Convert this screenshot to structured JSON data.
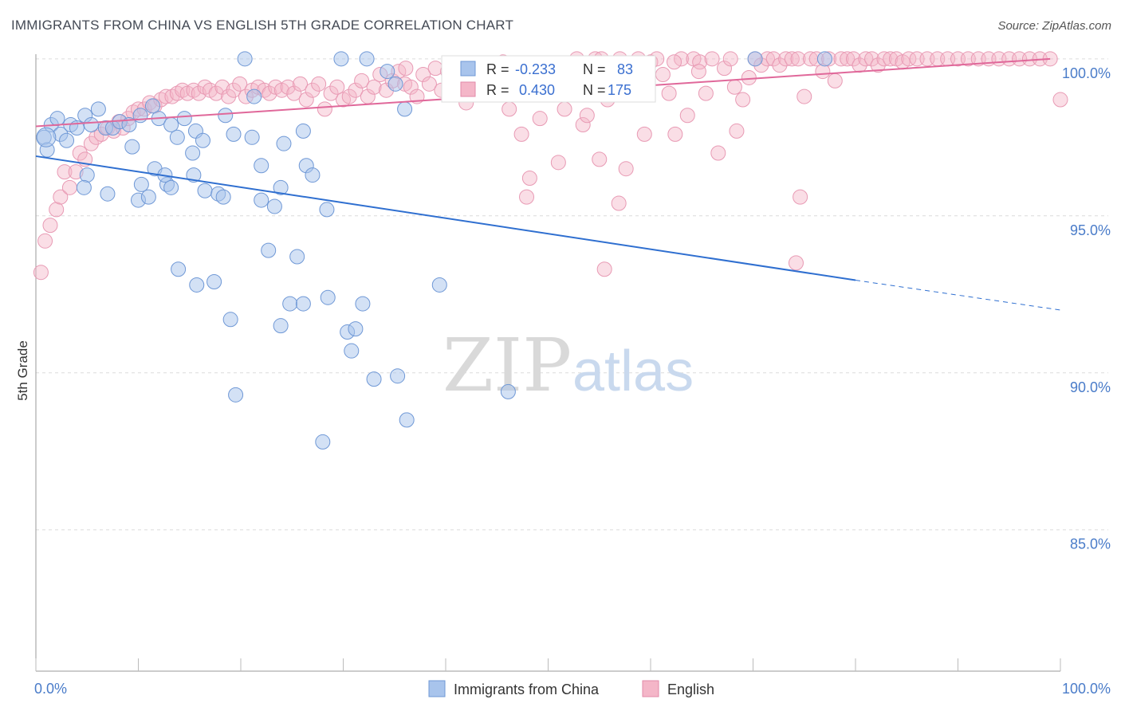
{
  "header": {
    "title": "IMMIGRANTS FROM CHINA VS ENGLISH 5TH GRADE CORRELATION CHART",
    "source": "Source: ZipAtlas.com"
  },
  "watermark": {
    "zip": "ZIP",
    "atlas": "atlas"
  },
  "legend_box": {
    "china": {
      "r_label": "R =",
      "r_value": "-0.233",
      "n_label": "N =",
      "n_value": "83"
    },
    "english": {
      "r_label": "R =",
      "r_value": "0.430",
      "n_label": "N =",
      "n_value": "175"
    }
  },
  "bottom_legend": {
    "china": "Immigrants from China",
    "english": "English"
  },
  "colors": {
    "china": "#a8c4ec",
    "china_line": "#2f6fd0",
    "english": "#f4b6c8",
    "english_line": "#e0689a",
    "axis_text": "#4a7cc9"
  },
  "chart_data": {
    "type": "scatter",
    "title": "IMMIGRANTS FROM CHINA VS ENGLISH 5TH GRADE CORRELATION CHART",
    "xlabel": "",
    "ylabel": "5th Grade",
    "xlim": [
      0,
      100
    ],
    "ylim": [
      80.5,
      100.3
    ],
    "x_ticks": [
      "0.0%",
      "100.0%"
    ],
    "y_ticks": [
      {
        "value": 100,
        "label": "100.0%"
      },
      {
        "value": 95,
        "label": "95.0%"
      },
      {
        "value": 90,
        "label": "90.0%"
      },
      {
        "value": 85,
        "label": "85.0%"
      }
    ],
    "grid": true,
    "legend": "bottom-center",
    "series": [
      {
        "name": "Immigrants from China",
        "r": -0.233,
        "n": 83,
        "trend": {
          "x0": 0,
          "y0": 96.9,
          "x1": 80,
          "y1": 92.95,
          "dash_x1": 100,
          "dash_y1": 92.0
        },
        "points": [
          [
            0.8,
            97.5
          ],
          [
            1.1,
            97.1
          ],
          [
            1.5,
            97.9
          ],
          [
            2.1,
            98.1
          ],
          [
            2.4,
            97.6
          ],
          [
            3.0,
            97.4
          ],
          [
            3.4,
            97.9
          ],
          [
            4.0,
            97.8
          ],
          [
            4.8,
            98.2
          ],
          [
            5.4,
            97.9
          ],
          [
            6.1,
            98.4
          ],
          [
            6.8,
            97.8
          ],
          [
            7.5,
            97.8
          ],
          [
            8.2,
            98.0
          ],
          [
            9.1,
            97.9
          ],
          [
            10.2,
            98.2
          ],
          [
            11.4,
            98.5
          ],
          [
            12.0,
            98.1
          ],
          [
            13.2,
            97.9
          ],
          [
            14.5,
            98.1
          ],
          [
            15.6,
            97.7
          ],
          [
            16.3,
            97.4
          ],
          [
            5.0,
            96.3
          ],
          [
            4.7,
            95.9
          ],
          [
            7.0,
            95.7
          ],
          [
            9.4,
            97.2
          ],
          [
            10.0,
            95.5
          ],
          [
            10.3,
            96.0
          ],
          [
            11.0,
            95.6
          ],
          [
            11.6,
            96.5
          ],
          [
            12.8,
            96.0
          ],
          [
            12.6,
            96.3
          ],
          [
            13.2,
            95.9
          ],
          [
            13.8,
            97.5
          ],
          [
            15.3,
            97.0
          ],
          [
            15.4,
            96.3
          ],
          [
            16.5,
            95.8
          ],
          [
            17.8,
            95.7
          ],
          [
            18.3,
            95.6
          ],
          [
            18.5,
            98.2
          ],
          [
            19.3,
            97.6
          ],
          [
            21.3,
            98.8
          ],
          [
            22.0,
            95.5
          ],
          [
            22.0,
            96.6
          ],
          [
            22.7,
            93.9
          ],
          [
            23.3,
            95.3
          ],
          [
            23.9,
            95.9
          ],
          [
            24.2,
            97.3
          ],
          [
            26.1,
            97.7
          ],
          [
            26.4,
            96.6
          ],
          [
            27.0,
            96.3
          ],
          [
            28.4,
            95.2
          ],
          [
            21.1,
            97.5
          ],
          [
            13.9,
            93.3
          ],
          [
            15.7,
            92.8
          ],
          [
            17.4,
            92.9
          ],
          [
            19.0,
            91.7
          ],
          [
            19.5,
            89.3
          ],
          [
            24.8,
            92.2
          ],
          [
            25.5,
            93.7
          ],
          [
            26.1,
            92.2
          ],
          [
            23.9,
            91.5
          ],
          [
            28.5,
            92.4
          ],
          [
            30.4,
            91.3
          ],
          [
            30.8,
            90.7
          ],
          [
            31.2,
            91.4
          ],
          [
            31.9,
            92.2
          ],
          [
            33.0,
            89.8
          ],
          [
            35.3,
            89.9
          ],
          [
            36.2,
            88.5
          ],
          [
            28.0,
            87.8
          ],
          [
            39.4,
            92.8
          ],
          [
            46.1,
            89.4
          ],
          [
            20.4,
            100.0
          ],
          [
            29.8,
            100.0
          ],
          [
            32.3,
            100.0
          ],
          [
            34.3,
            99.6
          ],
          [
            36.0,
            98.4
          ],
          [
            35.1,
            99.2
          ],
          [
            50.5,
            99.3
          ],
          [
            70.2,
            100.0
          ],
          [
            77.0,
            100.0
          ],
          [
            1.0,
            97.5
          ]
        ]
      },
      {
        "name": "English",
        "r": 0.43,
        "n": 175,
        "trend": {
          "x0": 0,
          "y0": 97.85,
          "x1": 99,
          "y1": 100.0
        },
        "points": [
          [
            0.5,
            93.2
          ],
          [
            0.9,
            94.2
          ],
          [
            1.4,
            94.7
          ],
          [
            2.0,
            95.2
          ],
          [
            2.4,
            95.6
          ],
          [
            2.8,
            96.4
          ],
          [
            3.3,
            95.9
          ],
          [
            3.9,
            96.4
          ],
          [
            4.3,
            97.0
          ],
          [
            4.8,
            96.8
          ],
          [
            5.4,
            97.3
          ],
          [
            5.9,
            97.5
          ],
          [
            6.4,
            97.6
          ],
          [
            7.0,
            97.8
          ],
          [
            7.6,
            97.7
          ],
          [
            8.1,
            98.0
          ],
          [
            8.5,
            97.8
          ],
          [
            9.0,
            98.1
          ],
          [
            9.5,
            98.3
          ],
          [
            10.0,
            98.4
          ],
          [
            10.6,
            98.4
          ],
          [
            11.1,
            98.6
          ],
          [
            11.6,
            98.5
          ],
          [
            12.2,
            98.7
          ],
          [
            12.7,
            98.8
          ],
          [
            13.3,
            98.8
          ],
          [
            13.8,
            98.9
          ],
          [
            14.3,
            99.0
          ],
          [
            14.8,
            98.9
          ],
          [
            15.4,
            99.0
          ],
          [
            15.9,
            98.9
          ],
          [
            16.5,
            99.1
          ],
          [
            17.0,
            99.0
          ],
          [
            17.6,
            98.9
          ],
          [
            18.2,
            99.1
          ],
          [
            18.8,
            98.8
          ],
          [
            19.3,
            99.0
          ],
          [
            19.9,
            99.2
          ],
          [
            20.5,
            98.8
          ],
          [
            21.1,
            99.0
          ],
          [
            21.7,
            99.1
          ],
          [
            22.3,
            99.0
          ],
          [
            22.8,
            98.9
          ],
          [
            23.4,
            99.1
          ],
          [
            24.0,
            99.0
          ],
          [
            24.6,
            99.1
          ],
          [
            25.2,
            98.9
          ],
          [
            25.8,
            99.2
          ],
          [
            26.4,
            98.7
          ],
          [
            27.0,
            99.0
          ],
          [
            27.6,
            99.2
          ],
          [
            28.2,
            98.4
          ],
          [
            28.8,
            98.9
          ],
          [
            29.4,
            99.1
          ],
          [
            30.0,
            98.7
          ],
          [
            30.6,
            98.8
          ],
          [
            31.2,
            99.0
          ],
          [
            31.8,
            99.3
          ],
          [
            32.4,
            98.8
          ],
          [
            33.0,
            99.1
          ],
          [
            33.6,
            99.5
          ],
          [
            34.2,
            99.0
          ],
          [
            34.8,
            99.3
          ],
          [
            35.4,
            99.6
          ],
          [
            36.0,
            99.2
          ],
          [
            36.6,
            99.1
          ],
          [
            37.2,
            98.8
          ],
          [
            37.8,
            99.5
          ],
          [
            38.4,
            99.2
          ],
          [
            39.0,
            99.7
          ],
          [
            39.6,
            99.0
          ],
          [
            40.2,
            99.6
          ],
          [
            40.8,
            99.8
          ],
          [
            41.4,
            99.3
          ],
          [
            42.0,
            98.6
          ],
          [
            42.6,
            99.0
          ],
          [
            43.2,
            99.5
          ],
          [
            43.8,
            99.2
          ],
          [
            44.4,
            99.7
          ],
          [
            45.0,
            99.4
          ],
          [
            45.6,
            99.9
          ],
          [
            46.2,
            98.4
          ],
          [
            46.8,
            99.6
          ],
          [
            47.4,
            97.6
          ],
          [
            48.0,
            98.9
          ],
          [
            48.6,
            99.4
          ],
          [
            49.2,
            98.1
          ],
          [
            49.8,
            99.6
          ],
          [
            50.4,
            99.0
          ],
          [
            51.0,
            96.7
          ],
          [
            51.6,
            98.4
          ],
          [
            52.2,
            99.7
          ],
          [
            52.8,
            100.0
          ],
          [
            53.4,
            97.9
          ],
          [
            54.0,
            99.5
          ],
          [
            54.6,
            100.0
          ],
          [
            55.2,
            100.0
          ],
          [
            55.8,
            98.7
          ],
          [
            56.4,
            99.8
          ],
          [
            57.0,
            100.0
          ],
          [
            57.6,
            96.5
          ],
          [
            58.2,
            99.6
          ],
          [
            58.8,
            100.0
          ],
          [
            59.4,
            97.6
          ],
          [
            60.0,
            99.9
          ],
          [
            60.6,
            100.0
          ],
          [
            61.2,
            99.5
          ],
          [
            61.8,
            98.9
          ],
          [
            62.4,
            97.6
          ],
          [
            63.0,
            100.0
          ],
          [
            63.6,
            98.2
          ],
          [
            64.2,
            100.0
          ],
          [
            64.8,
            99.9
          ],
          [
            65.4,
            98.9
          ],
          [
            66.0,
            100.0
          ],
          [
            66.6,
            97.0
          ],
          [
            67.2,
            99.7
          ],
          [
            67.8,
            100.0
          ],
          [
            68.4,
            97.7
          ],
          [
            69.0,
            98.7
          ],
          [
            69.6,
            99.4
          ],
          [
            70.2,
            100.0
          ],
          [
            70.8,
            99.8
          ],
          [
            71.4,
            100.0
          ],
          [
            72.0,
            100.0
          ],
          [
            72.6,
            99.8
          ],
          [
            73.2,
            100.0
          ],
          [
            73.8,
            100.0
          ],
          [
            74.4,
            100.0
          ],
          [
            75.0,
            98.8
          ],
          [
            75.6,
            100.0
          ],
          [
            76.2,
            100.0
          ],
          [
            76.8,
            99.6
          ],
          [
            77.4,
            100.0
          ],
          [
            78.0,
            99.3
          ],
          [
            78.6,
            100.0
          ],
          [
            79.2,
            100.0
          ],
          [
            79.8,
            100.0
          ],
          [
            80.4,
            99.8
          ],
          [
            81.0,
            100.0
          ],
          [
            81.6,
            100.0
          ],
          [
            82.2,
            99.8
          ],
          [
            82.8,
            100.0
          ],
          [
            83.4,
            100.0
          ],
          [
            84.0,
            100.0
          ],
          [
            84.6,
            99.9
          ],
          [
            85.2,
            100.0
          ],
          [
            86.0,
            100.0
          ],
          [
            87.0,
            100.0
          ],
          [
            88.0,
            100.0
          ],
          [
            89.0,
            100.0
          ],
          [
            90.0,
            100.0
          ],
          [
            91.0,
            100.0
          ],
          [
            92.0,
            100.0
          ],
          [
            93.0,
            100.0
          ],
          [
            94.0,
            100.0
          ],
          [
            95.0,
            100.0
          ],
          [
            96.0,
            100.0
          ],
          [
            97.0,
            100.0
          ],
          [
            98.0,
            100.0
          ],
          [
            99.0,
            100.0
          ],
          [
            100.0,
            98.7
          ],
          [
            36.1,
            99.7
          ],
          [
            46.6,
            99.2
          ],
          [
            48.2,
            96.2
          ],
          [
            53.8,
            98.2
          ],
          [
            55.0,
            96.8
          ],
          [
            56.9,
            95.4
          ],
          [
            55.5,
            93.3
          ],
          [
            64.7,
            99.6
          ],
          [
            74.2,
            93.5
          ],
          [
            74.6,
            95.6
          ],
          [
            47.9,
            95.6
          ],
          [
            62.3,
            99.9
          ],
          [
            68.2,
            99.1
          ]
        ]
      }
    ]
  }
}
